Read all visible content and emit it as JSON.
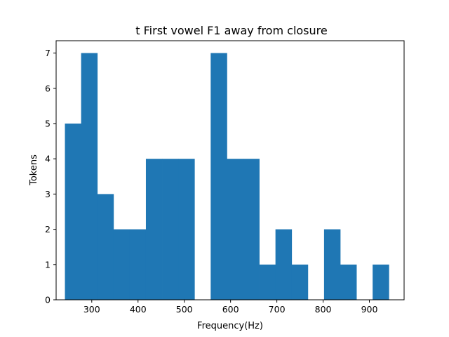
{
  "chart_data": {
    "type": "bar",
    "title": "t First vowel F1 away from closure",
    "xlabel": "Frequency(Hz)",
    "ylabel": "Tokens",
    "xlim": [
      223,
      975
    ],
    "ylim": [
      0,
      7.35
    ],
    "xticks": [
      300,
      400,
      500,
      600,
      700,
      800,
      900
    ],
    "yticks": [
      0,
      1,
      2,
      3,
      4,
      5,
      6,
      7
    ],
    "bin_start": 242,
    "bin_width": 35,
    "bin_counts": [
      5,
      7,
      3,
      2,
      2,
      4,
      4,
      4,
      0,
      7,
      4,
      4,
      1,
      2,
      1,
      0,
      2,
      1,
      0,
      1
    ],
    "bar_color": "#1f77b4",
    "grid": false,
    "legend": "none"
  }
}
